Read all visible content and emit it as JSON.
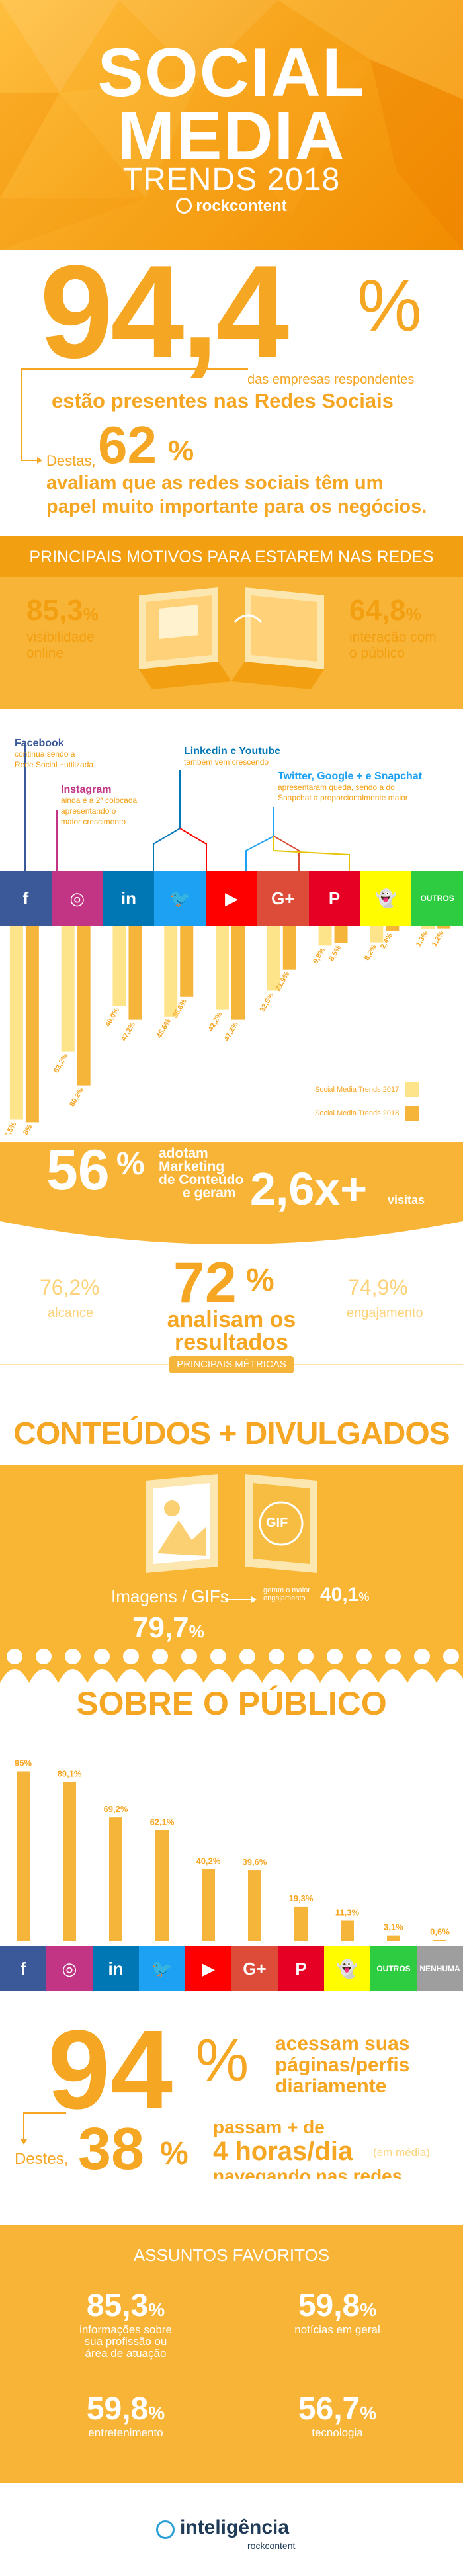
{
  "header": {
    "title_line1": "SOCIAL",
    "title_line2": "MEDIA",
    "title_line3": "TRENDS 2018",
    "brand": "rockcontent"
  },
  "presence": {
    "percent": "94,4",
    "percent_sign": "%",
    "line1": "das empresas respondentes",
    "line2": "estão presentes nas Redes Sociais",
    "destas": "Destas,",
    "percent2": "62",
    "percent2_sign": "%",
    "line3": "avaliam que as redes sociais têm um",
    "line4": "papel muito importante para os negócios."
  },
  "motivos": {
    "title": "PRINCIPAIS MOTIVOS PARA ESTAREM NAS REDES",
    "left_value": "85,3",
    "left_sign": "%",
    "left_label1": "visibilidade",
    "left_label2": "online",
    "right_value": "64,8",
    "right_sign": "%",
    "right_label1": "interação com",
    "right_label2": "o público"
  },
  "annotations": {
    "facebook_title": "Facebook",
    "facebook_text1": "continua sendo a",
    "facebook_text2": "Rede Social +utilizada",
    "instagram_title": "Instagram",
    "instagram_text1": "ainda é a 2ª colocada",
    "instagram_text2": "apresentando o",
    "instagram_text3": "maior crescimento",
    "linkedin_title": "Linkedin e Youtube",
    "linkedin_text1": "também vem crescendo",
    "twitter_title": "Twitter, Google + e Snapchat",
    "twitter_text1": "apresentaram queda, sendo a do",
    "twitter_text2": "Snapchat a proporcionalmente maior"
  },
  "network_icons": [
    "f",
    "◎",
    "in",
    "🐦",
    "▶",
    "G+",
    "P",
    "👻",
    "OUTROS"
  ],
  "network_colors": [
    "#3b5998",
    "#c13584",
    "#0077b5",
    "#1da1f2",
    "#ff0000",
    "#dd4b39",
    "#e60023",
    "#fffc00",
    "#2ecc40"
  ],
  "chart_data": [
    {
      "type": "bar",
      "categories": [
        "Facebook",
        "Instagram",
        "Linkedin",
        "Twitter",
        "Youtube",
        "Google+",
        "Pinterest",
        "Snapchat",
        "Outros"
      ],
      "series": [
        {
          "name": "Social Media Trends 2017",
          "values": [
            97.5,
            63.2,
            40.0,
            45.6,
            42.2,
            32.5,
            9.8,
            8.2,
            1.3
          ]
        },
        {
          "name": "Social Media Trends 2018",
          "values": [
            98.8,
            80.2,
            47.2,
            35.6,
            47.2,
            21.9,
            8.5,
            2.4,
            1.2
          ]
        }
      ],
      "labels_2017": [
        "97,5%",
        "63,2%",
        "40,0%",
        "45,6%",
        "42,2%",
        "32,5%",
        "9,8%",
        "8,2%",
        "1,3%"
      ],
      "labels_2018": [
        "98,8%",
        "80,2%",
        "47,2%",
        "35,6%",
        "47,2%",
        "21,9%",
        "8,5%",
        "2,4%",
        "1,2%"
      ],
      "ylim": [
        0,
        100
      ],
      "legend_2017": "Social Media Trends 2017",
      "legend_2018": "Social Media Trends 2018",
      "legend_placement": "bottom-right"
    },
    {
      "type": "bar",
      "categories": [
        "Facebook",
        "Instagram",
        "Linkedin",
        "Twitter",
        "Youtube",
        "Google+",
        "Pinterest",
        "Snapchat",
        "Outros",
        "Nenhuma"
      ],
      "values": [
        95.0,
        89.1,
        69.2,
        62.1,
        40.2,
        39.6,
        19.3,
        11.3,
        3.1,
        0.6
      ],
      "labels": [
        "95%",
        "89,1%",
        "69,2%",
        "62,1%",
        "40,2%",
        "39,6%",
        "19,3%",
        "11,3%",
        "3,1%",
        "0,6%"
      ],
      "ylim": [
        0,
        100
      ]
    }
  ],
  "marketing": {
    "percent": "56",
    "percent_sign": "%",
    "text1": "adotam",
    "text2": "Marketing",
    "text3": "de Conteúdo",
    "text4": "e geram",
    "visits_value": "2,6x+",
    "visits_label": "visitas",
    "alcance_value": "76,2%",
    "alcance_label": "alcance",
    "center_value": "72",
    "center_sign": "%",
    "center_text1": "analisam os",
    "center_text2": "resultados",
    "engaj_value": "74,9%",
    "engaj_label": "engajamento",
    "metrics_label": "PRINCIPAIS MÉTRICAS"
  },
  "conteudos": {
    "title": "CONTEÚDOS + DIVULGADOS",
    "gif": "GIF",
    "label": "Imagens / GIFs",
    "value": "79,7",
    "value_sign": "%",
    "eng_text1": "geram o maior",
    "eng_text2": "engajamento",
    "eng_value": "40,1",
    "eng_sign": "%"
  },
  "publico": {
    "title": "SOBRE O PÚBLICO",
    "icons": [
      "f",
      "◎",
      "in",
      "🐦",
      "▶",
      "G+",
      "P",
      "👻",
      "OUTROS",
      "NENHUMA"
    ],
    "colors": [
      "#3b5998",
      "#c13584",
      "#0077b5",
      "#1da1f2",
      "#ff0000",
      "#dd4b39",
      "#e60023",
      "#fffc00",
      "#2ecc40",
      "#9e9e9e"
    ]
  },
  "acesso": {
    "percent": "94",
    "percent_sign": "%",
    "text1": "acessam suas",
    "text2": "páginas/perfis",
    "text3": "diariamente",
    "destes": "Destes,",
    "percent2": "38",
    "percent2_sign": "%",
    "passam": "passam + de",
    "horas": "4 horas/dia",
    "media": "(em média)",
    "navegando": "navegando nas redes."
  },
  "assuntos": {
    "title": "ASSUNTOS FAVORITOS",
    "items": [
      {
        "value": "85,3",
        "sign": "%",
        "label1": "informações sobre",
        "label2": "sua profissão ou",
        "label3": "área de atuação"
      },
      {
        "value": "59,8",
        "sign": "%",
        "label1": "notícias em geral",
        "label2": "",
        "label3": ""
      },
      {
        "value": "59,8",
        "sign": "%",
        "label1": "entretenimento",
        "label2": "",
        "label3": ""
      },
      {
        "value": "56,7",
        "sign": "%",
        "label1": "tecnologia",
        "label2": "",
        "label3": ""
      }
    ]
  },
  "footer": {
    "brand": "inteligência",
    "sub": "rockcontent"
  }
}
